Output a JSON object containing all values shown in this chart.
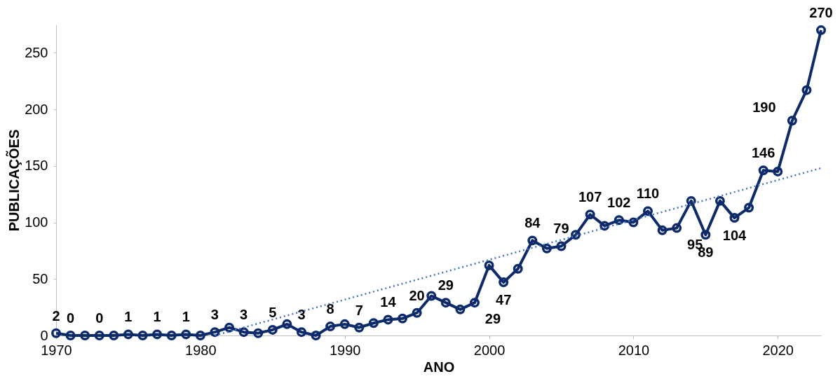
{
  "chart_data": {
    "type": "line",
    "xlabel": "ANO",
    "ylabel": "PUBLICAÇÕES",
    "x": [
      1970,
      1971,
      1972,
      1973,
      1974,
      1975,
      1976,
      1977,
      1978,
      1979,
      1980,
      1981,
      1982,
      1983,
      1984,
      1985,
      1986,
      1987,
      1988,
      1989,
      1990,
      1991,
      1992,
      1993,
      1994,
      1995,
      1996,
      1997,
      1998,
      1999,
      2000,
      2001,
      2002,
      2003,
      2004,
      2005,
      2006,
      2007,
      2008,
      2009,
      2010,
      2011,
      2012,
      2013,
      2014,
      2015,
      2016,
      2017,
      2018,
      2019,
      2020,
      2021,
      2022,
      2023
    ],
    "xlim": [
      1970,
      2023
    ],
    "xticks": [
      1970,
      1980,
      1990,
      2000,
      2010,
      2020
    ],
    "ylim": [
      0,
      275
    ],
    "yticks": [
      0,
      50,
      100,
      150,
      200,
      250
    ],
    "grid": false,
    "marker": "circle",
    "line_style": "solid",
    "series": [
      {
        "color": "#0d2b6b",
        "values": [
          2,
          0,
          0,
          0,
          0,
          1,
          0,
          1,
          0,
          1,
          0,
          3,
          7,
          3,
          2,
          5,
          10,
          3,
          0,
          8,
          10,
          7,
          11,
          14,
          15,
          20,
          35,
          29,
          23,
          29,
          62,
          47,
          59,
          84,
          77,
          79,
          89,
          107,
          97,
          102,
          100,
          110,
          93,
          95,
          119,
          89,
          119,
          104,
          113,
          146,
          145,
          190,
          217,
          270
        ],
        "value_labels": [
          "2",
          "0",
          null,
          "0",
          null,
          "1",
          null,
          "1",
          null,
          "1",
          null,
          "3",
          null,
          "3",
          null,
          "5",
          null,
          "3",
          null,
          "8",
          null,
          "7",
          null,
          "14",
          null,
          "20",
          null,
          "29",
          null,
          "29",
          null,
          "47",
          null,
          "84",
          null,
          "79",
          null,
          "107",
          null,
          "102",
          null,
          "110",
          null,
          "95",
          null,
          "89",
          null,
          "104",
          null,
          "146",
          null,
          "190",
          null,
          "270"
        ]
      },
      {
        "type": "line",
        "color": "#4472c4",
        "line_style": "dotted",
        "marker": "none",
        "x": [
          1981,
          2023
        ],
        "values": [
          0,
          148
        ]
      }
    ]
  }
}
